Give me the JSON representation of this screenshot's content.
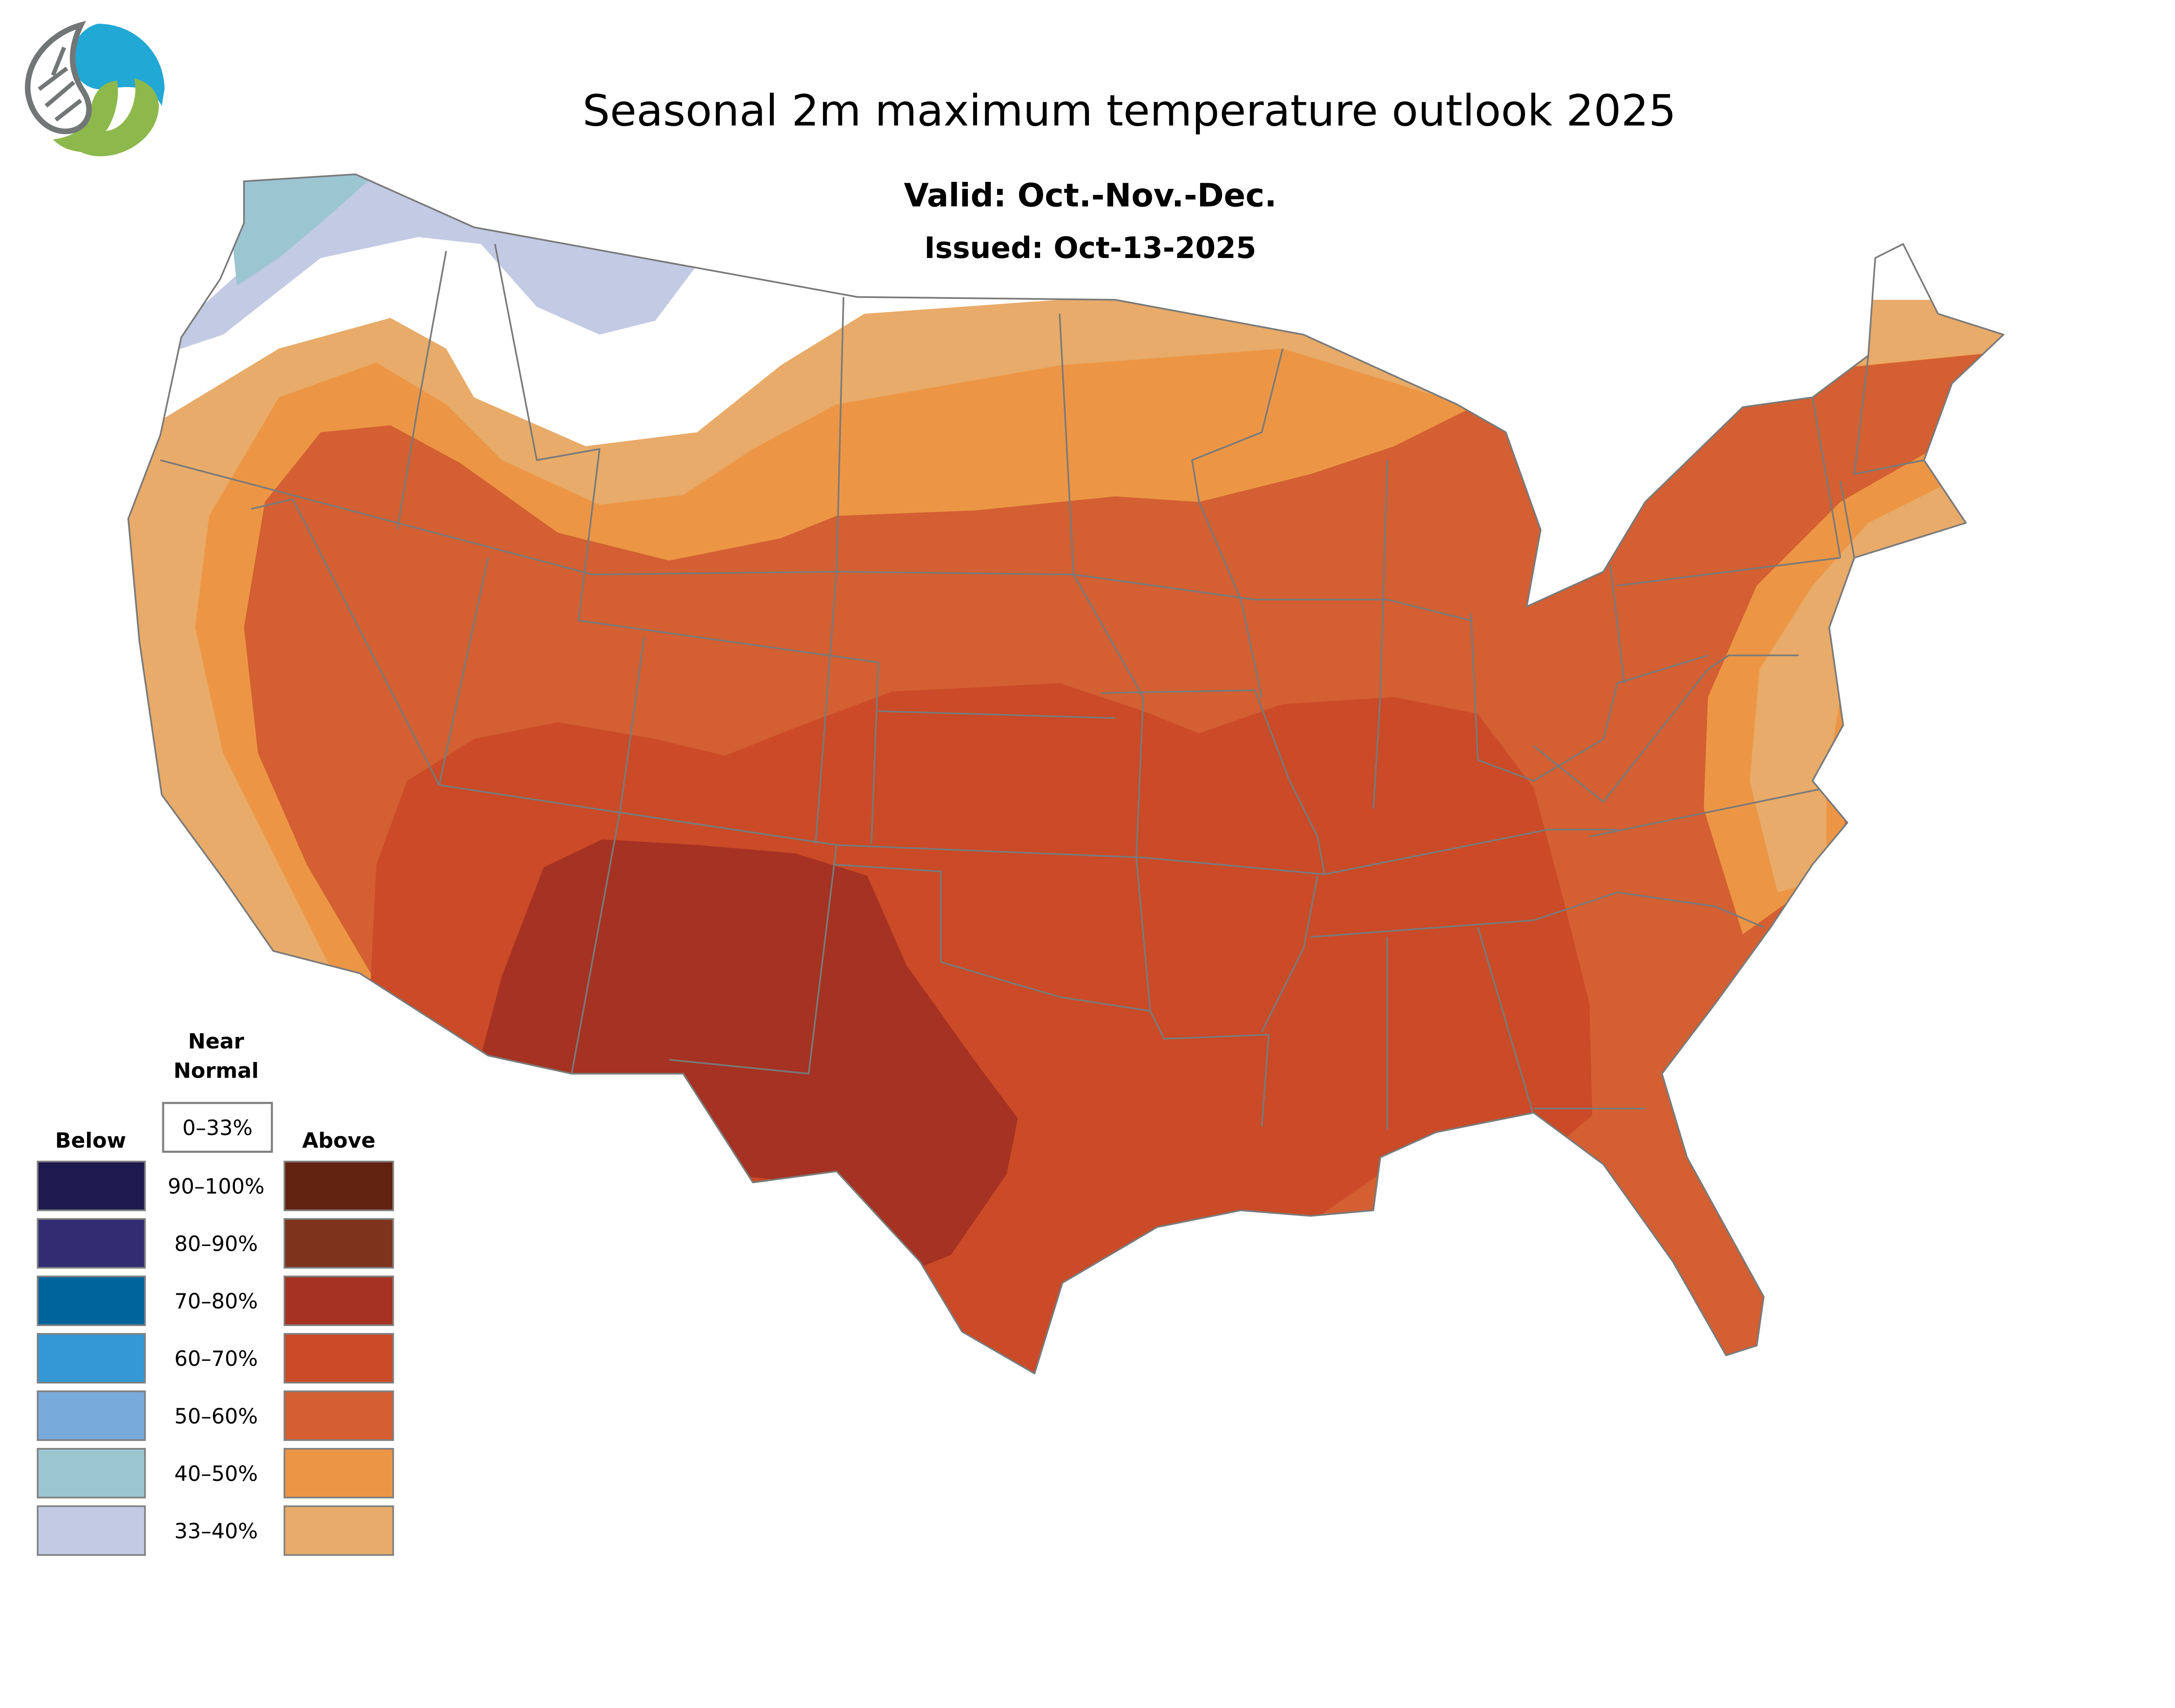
{
  "header": {
    "title": "Seasonal 2m maximum temperature outlook 2025",
    "valid": "Valid: Oct.-Nov.-Dec.",
    "issued": "Issued: Oct-13-2025"
  },
  "logo": {
    "name": "logo-icon",
    "colors": {
      "blue": "#21a8d4",
      "green": "#8db84c",
      "grey": "#737676"
    }
  },
  "colors": {
    "near_normal": "#ffffff",
    "above": {
      "90-100": "#612210",
      "80-90": "#7d331c",
      "70-80": "#a53222",
      "60-70": "#cb4a27",
      "50-60": "#d35f32",
      "40-50": "#ec9645",
      "33-40": "#e8ab69"
    },
    "below": {
      "90-100": "#1e1a4f",
      "80-90": "#322d72",
      "70-80": "#00649c",
      "60-70": "#3398d4",
      "50-60": "#78aadb",
      "40-50": "#9cc5d2",
      "33-40": "#c3cae4"
    },
    "state_border": "#7a7a7a"
  },
  "legend": {
    "near_normal_title_1": "Near",
    "near_normal_title_2": "Normal",
    "near_normal_range": "0–33%",
    "below_label": "Below",
    "above_label": "Above",
    "rows": [
      {
        "range": "90–100%",
        "below": "#1e1a4f",
        "above": "#612210"
      },
      {
        "range": "80–90%",
        "below": "#322d72",
        "above": "#7d331c"
      },
      {
        "range": "70–80%",
        "below": "#00649c",
        "above": "#a53222"
      },
      {
        "range": "60–70%",
        "below": "#3398d4",
        "above": "#cb4a27"
      },
      {
        "range": "50–60%",
        "below": "#78aadb",
        "above": "#d35f32"
      },
      {
        "range": "40–50%",
        "below": "#9cc5d2",
        "above": "#ec9645"
      },
      {
        "range": "33–40%",
        "below": "#c3cae4",
        "above": "#e8ab69"
      }
    ]
  }
}
